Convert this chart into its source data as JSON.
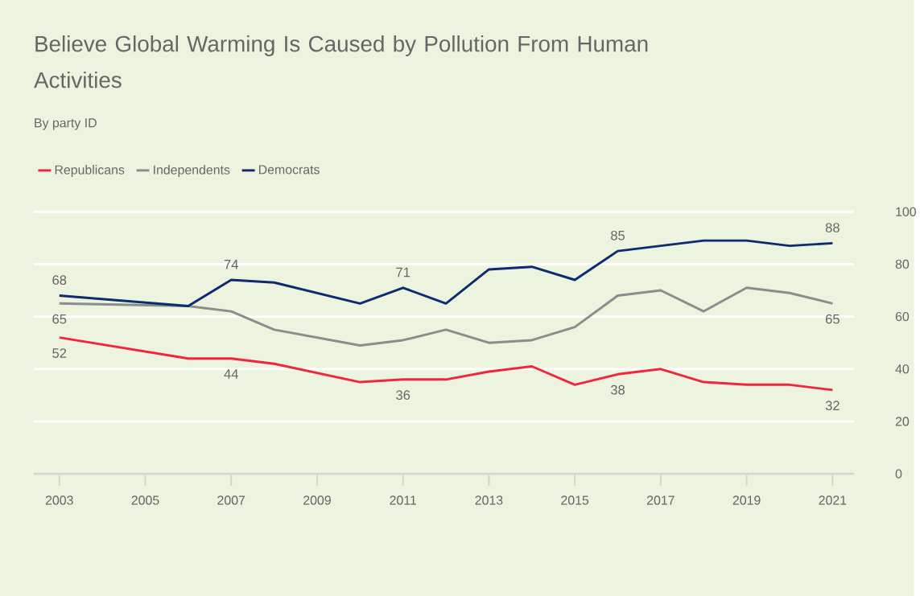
{
  "chart_data": {
    "type": "line",
    "title": "Believe Global Warming Is Caused by Pollution From Human Activities",
    "subtitle": "By party ID",
    "x": [
      2003,
      2006,
      2007,
      2008,
      2010,
      2011,
      2012,
      2013,
      2014,
      2015,
      2016,
      2017,
      2018,
      2019,
      2020,
      2021
    ],
    "series": [
      {
        "name": "Republicans",
        "color": "#f0263c",
        "values": [
          52,
          44,
          44,
          42,
          35,
          36,
          36,
          39,
          41,
          34,
          38,
          40,
          35,
          34,
          34,
          32
        ],
        "value_labels": [
          "52",
          null,
          "44",
          null,
          null,
          "36",
          null,
          null,
          null,
          null,
          "38",
          null,
          null,
          null,
          null,
          "32"
        ]
      },
      {
        "name": "Independents",
        "color": "#8c8c8c",
        "values": [
          65,
          64,
          62,
          55,
          49,
          51,
          55,
          50,
          51,
          56,
          68,
          70,
          62,
          71,
          69,
          65
        ],
        "value_labels": [
          "65",
          null,
          null,
          null,
          null,
          null,
          null,
          null,
          null,
          null,
          null,
          null,
          null,
          null,
          null,
          "65"
        ]
      },
      {
        "name": "Democrats",
        "color": "#0d2b6f",
        "values": [
          68,
          64,
          74,
          73,
          65,
          71,
          65,
          78,
          79,
          74,
          85,
          87,
          89,
          89,
          87,
          88
        ],
        "value_labels": [
          "68",
          null,
          "74",
          null,
          null,
          "71",
          null,
          null,
          null,
          null,
          "85",
          null,
          null,
          null,
          null,
          "88"
        ]
      }
    ],
    "xlim": [
      2002.4,
      2021.5
    ],
    "xticks": [
      2003,
      2005,
      2007,
      2009,
      2011,
      2013,
      2015,
      2017,
      2019,
      2021
    ],
    "ylim": [
      0,
      100
    ],
    "yticks": [
      0,
      20,
      40,
      60,
      80,
      100
    ],
    "grid": "y",
    "legend": "top left",
    "marker": "none",
    "line_style": "solid"
  }
}
